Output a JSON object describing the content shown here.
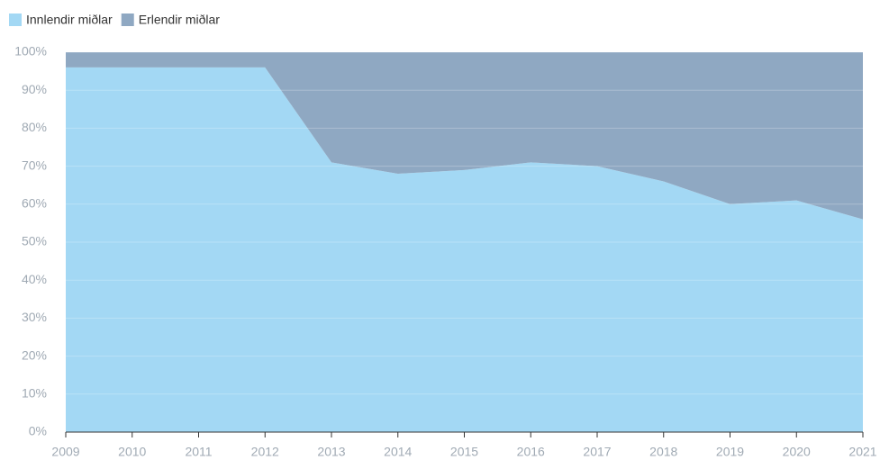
{
  "chart_data": {
    "type": "stacked_area",
    "x": [
      2009,
      2010,
      2011,
      2012,
      2013,
      2014,
      2015,
      2016,
      2017,
      2018,
      2019,
      2020,
      2021
    ],
    "series": [
      {
        "name": "Innlendir miðlar",
        "color": "#a3d8f4",
        "values": [
          96,
          96,
          96,
          96,
          71,
          68,
          69,
          71,
          70,
          66,
          60,
          61,
          56
        ]
      },
      {
        "name": "Erlendir miðlar",
        "color": "#8fa8c2",
        "values": [
          4,
          4,
          4,
          4,
          29,
          32,
          31,
          29,
          30,
          34,
          40,
          39,
          44
        ]
      }
    ],
    "xlim": [
      2009,
      2021
    ],
    "xticks": [
      2009,
      2010,
      2011,
      2012,
      2013,
      2014,
      2015,
      2016,
      2017,
      2018,
      2019,
      2020,
      2021
    ],
    "ylim": [
      0,
      100
    ],
    "yticks": [
      {
        "value": 0,
        "label": "0%"
      },
      {
        "value": 10,
        "label": "10%"
      },
      {
        "value": 20,
        "label": "20%"
      },
      {
        "value": 30,
        "label": "30%"
      },
      {
        "value": 40,
        "label": "40%"
      },
      {
        "value": 50,
        "label": "50%"
      },
      {
        "value": 60,
        "label": "60%"
      },
      {
        "value": 70,
        "label": "70%"
      },
      {
        "value": 80,
        "label": "80%"
      },
      {
        "value": 90,
        "label": "90%"
      },
      {
        "value": 100,
        "label": "100%"
      }
    ],
    "grid": true,
    "legend": "top-left"
  }
}
